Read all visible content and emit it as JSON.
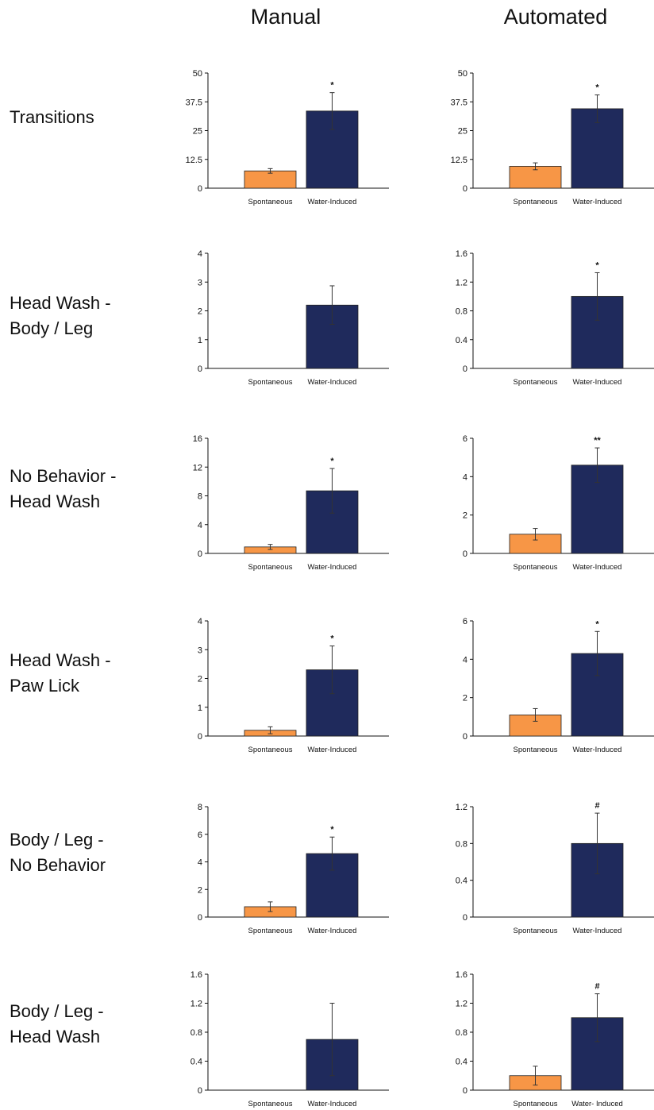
{
  "columns": [
    "Manual",
    "Automated"
  ],
  "rows": [
    {
      "label_lines": [
        "Transitions"
      ]
    },
    {
      "label_lines": [
        "Head Wash -",
        "Body / Leg"
      ]
    },
    {
      "label_lines": [
        "No Behavior -",
        "Head Wash"
      ]
    },
    {
      "label_lines": [
        "Head Wash -",
        "Paw Lick"
      ]
    },
    {
      "label_lines": [
        "Body / Leg -",
        "No Behavior"
      ]
    },
    {
      "label_lines": [
        "Body / Leg -",
        "Head Wash"
      ]
    }
  ],
  "colors": {
    "spontaneous": "#F79646",
    "water_induced": "#1F2A5C",
    "axis": "#111111",
    "error_bar": "#333333"
  },
  "chart_data": [
    {
      "type": "bar",
      "column": "Manual",
      "row": "Transitions",
      "categories": [
        "Spontaneous",
        "Water-Induced"
      ],
      "values": [
        7.5,
        33.5
      ],
      "errors": [
        1,
        8
      ],
      "significance": [
        "",
        "*"
      ],
      "ylim": [
        0,
        50
      ],
      "yticks": [
        "0",
        "12.5",
        "25",
        "37.5",
        "50"
      ]
    },
    {
      "type": "bar",
      "column": "Automated",
      "row": "Transitions",
      "categories": [
        "Spontaneous",
        "Water-Induced"
      ],
      "values": [
        9.5,
        34.5
      ],
      "errors": [
        1.5,
        6
      ],
      "significance": [
        "",
        "*"
      ],
      "ylim": [
        0,
        50
      ],
      "yticks": [
        "0",
        "12.5",
        "25",
        "37.5",
        "50"
      ]
    },
    {
      "type": "bar",
      "column": "Manual",
      "row": "Head Wash - Body / Leg",
      "categories": [
        "Spontaneous",
        "Water-Induced"
      ],
      "values": [
        0,
        2.2
      ],
      "errors": [
        0,
        0.67
      ],
      "significance": [
        "",
        ""
      ],
      "ylim": [
        0,
        4
      ],
      "yticks": [
        "0",
        "1",
        "2",
        "3",
        "4"
      ]
    },
    {
      "type": "bar",
      "column": "Automated",
      "row": "Head Wash - Body / Leg",
      "categories": [
        "Spontaneous",
        "Water-Induced"
      ],
      "values": [
        0,
        1.0
      ],
      "errors": [
        0,
        0.33
      ],
      "significance": [
        "",
        "*"
      ],
      "ylim": [
        0,
        1.6
      ],
      "yticks": [
        "0",
        "0.4",
        "0.8",
        "1.2",
        "1.6"
      ]
    },
    {
      "type": "bar",
      "column": "Manual",
      "row": "No Behavior - Head Wash",
      "categories": [
        "Spontaneous",
        "Water-Induced"
      ],
      "values": [
        0.9,
        8.7
      ],
      "errors": [
        0.35,
        3.1
      ],
      "significance": [
        "",
        "*"
      ],
      "ylim": [
        0,
        16
      ],
      "yticks": [
        "0",
        "4",
        "8",
        "12",
        "16"
      ]
    },
    {
      "type": "bar",
      "column": "Automated",
      "row": "No Behavior - Head Wash",
      "categories": [
        "Spontaneous",
        "Water-Induced"
      ],
      "values": [
        1.0,
        4.6
      ],
      "errors": [
        0.3,
        0.9
      ],
      "significance": [
        "",
        "**"
      ],
      "ylim": [
        0,
        6
      ],
      "yticks": [
        "0",
        "2",
        "4",
        "6"
      ]
    },
    {
      "type": "bar",
      "column": "Manual",
      "row": "Head Wash - Paw Lick",
      "categories": [
        "Spontaneous",
        "Water-Induced"
      ],
      "values": [
        0.2,
        2.3
      ],
      "errors": [
        0.12,
        0.83
      ],
      "significance": [
        "",
        "*"
      ],
      "ylim": [
        0,
        4
      ],
      "yticks": [
        "0",
        "1",
        "2",
        "3",
        "4"
      ]
    },
    {
      "type": "bar",
      "column": "Automated",
      "row": "Head Wash - Paw Lick",
      "categories": [
        "Spontaneous",
        "Water-Induced"
      ],
      "values": [
        1.1,
        4.3
      ],
      "errors": [
        0.33,
        1.15
      ],
      "significance": [
        "",
        "*"
      ],
      "ylim": [
        0,
        6
      ],
      "yticks": [
        "0",
        "2",
        "4",
        "6"
      ]
    },
    {
      "type": "bar",
      "column": "Manual",
      "row": "Body / Leg - No Behavior",
      "categories": [
        "Spontaneous",
        "Water-Induced"
      ],
      "values": [
        0.75,
        4.6
      ],
      "errors": [
        0.35,
        1.2
      ],
      "significance": [
        "",
        "*"
      ],
      "ylim": [
        0,
        8
      ],
      "yticks": [
        "0",
        "2",
        "4",
        "6",
        "8"
      ]
    },
    {
      "type": "bar",
      "column": "Automated",
      "row": "Body / Leg - No Behavior",
      "categories": [
        "Spontaneous",
        "Water-Induced"
      ],
      "values": [
        0,
        0.8
      ],
      "errors": [
        0,
        0.33
      ],
      "significance": [
        "",
        "#"
      ],
      "ylim": [
        0,
        1.2
      ],
      "yticks": [
        "0",
        "0.4",
        "0.8",
        "1.2"
      ]
    },
    {
      "type": "bar",
      "column": "Manual",
      "row": "Body / Leg - Head Wash",
      "categories": [
        "Spontaneous",
        "Water-Induced"
      ],
      "values": [
        0,
        0.7
      ],
      "errors": [
        0,
        0.5
      ],
      "significance": [
        "",
        ""
      ],
      "ylim": [
        0,
        1.6
      ],
      "yticks": [
        "0",
        "0.4",
        "0.8",
        "1.2",
        "1.6"
      ]
    },
    {
      "type": "bar",
      "column": "Automated",
      "row": "Body / Leg - Head Wash",
      "categories": [
        "Spontaneous",
        "Water- Induced"
      ],
      "values": [
        0.2,
        1.0
      ],
      "errors": [
        0.13,
        0.33
      ],
      "significance": [
        "",
        "#"
      ],
      "ylim": [
        0,
        1.6
      ],
      "yticks": [
        "0",
        "0.4",
        "0.8",
        "1.2",
        "1.6"
      ]
    }
  ]
}
